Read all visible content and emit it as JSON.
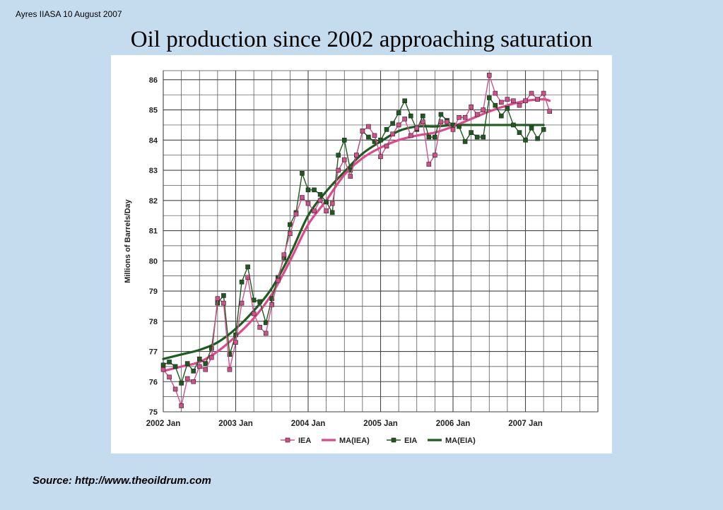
{
  "header_note": "Ayres IIASA 10 August 2007",
  "slide_title": "Oil production since 2002 approaching saturation",
  "source": "Source: http://www.theoildrum.com",
  "colors": {
    "iea": "#d0508a",
    "eia": "#1d5a1d",
    "ma_iea": "#e0488a",
    "ma_eia": "#1f5c1f"
  },
  "chart_data": {
    "type": "line",
    "title": "",
    "xlabel": "",
    "ylabel": "Millions of Barrels/Day",
    "ylim": [
      75,
      86.3
    ],
    "yticks": [
      75,
      76,
      77,
      78,
      79,
      80,
      81,
      82,
      83,
      84,
      85,
      86
    ],
    "xlim": [
      "2002-01",
      "2008-01"
    ],
    "xtick_labels": [
      "2002 Jan",
      "2003 Jan",
      "2004 Jan",
      "2005 Jan",
      "2006 Jan",
      "2007 Jan"
    ],
    "grid": true,
    "legend": "bottom",
    "series": [
      {
        "name": "IEA",
        "style": "line-markers",
        "values": [
          [
            "2002-01",
            76.4
          ],
          [
            "2002-02",
            76.15
          ],
          [
            "2002-03",
            75.75
          ],
          [
            "2002-04",
            75.2
          ],
          [
            "2002-05",
            76.1
          ],
          [
            "2002-06",
            76.0
          ],
          [
            "2002-07",
            76.5
          ],
          [
            "2002-08",
            76.4
          ],
          [
            "2002-09",
            76.8
          ],
          [
            "2002-10",
            78.75
          ],
          [
            "2002-11",
            78.6
          ],
          [
            "2002-12",
            76.4
          ],
          [
            "2003-01",
            77.3
          ],
          [
            "2003-02",
            78.6
          ],
          [
            "2003-03",
            79.45
          ],
          [
            "2003-04",
            78.25
          ],
          [
            "2003-05",
            77.8
          ],
          [
            "2003-06",
            77.6
          ],
          [
            "2003-07",
            78.55
          ],
          [
            "2003-08",
            79.35
          ],
          [
            "2003-09",
            80.2
          ],
          [
            "2003-10",
            80.9
          ],
          [
            "2003-11",
            81.55
          ],
          [
            "2003-12",
            82.1
          ],
          [
            "2004-01",
            81.9
          ],
          [
            "2004-02",
            81.65
          ],
          [
            "2004-03",
            82.0
          ],
          [
            "2004-04",
            81.65
          ],
          [
            "2004-05",
            81.9
          ],
          [
            "2004-06",
            83.0
          ],
          [
            "2004-07",
            83.35
          ],
          [
            "2004-08",
            82.8
          ],
          [
            "2004-09",
            83.5
          ],
          [
            "2004-10",
            84.3
          ],
          [
            "2004-11",
            84.45
          ],
          [
            "2004-12",
            84.15
          ],
          [
            "2005-01",
            83.45
          ],
          [
            "2005-02",
            83.8
          ],
          [
            "2005-03",
            84.2
          ],
          [
            "2005-04",
            84.5
          ],
          [
            "2005-05",
            84.7
          ],
          [
            "2005-06",
            84.15
          ],
          [
            "2005-07",
            84.4
          ],
          [
            "2005-08",
            84.6
          ],
          [
            "2005-09",
            83.2
          ],
          [
            "2005-10",
            83.5
          ],
          [
            "2005-11",
            84.6
          ],
          [
            "2005-12",
            84.6
          ],
          [
            "2006-01",
            84.35
          ],
          [
            "2006-02",
            84.75
          ],
          [
            "2006-03",
            84.75
          ],
          [
            "2006-04",
            85.1
          ],
          [
            "2006-05",
            84.85
          ],
          [
            "2006-06",
            85.0
          ],
          [
            "2006-07",
            86.15
          ],
          [
            "2006-08",
            85.55
          ],
          [
            "2006-09",
            85.25
          ],
          [
            "2006-10",
            85.35
          ],
          [
            "2006-11",
            85.3
          ],
          [
            "2006-12",
            85.15
          ],
          [
            "2007-01",
            85.3
          ],
          [
            "2007-02",
            85.55
          ],
          [
            "2007-03",
            85.35
          ],
          [
            "2007-04",
            85.55
          ],
          [
            "2007-05",
            84.95
          ]
        ]
      },
      {
        "name": "MA(IEA)",
        "style": "thick-line",
        "values": [
          [
            "2002-01",
            76.35
          ],
          [
            "2002-04",
            76.5
          ],
          [
            "2002-07",
            76.65
          ],
          [
            "2002-10",
            77.0
          ],
          [
            "2003-01",
            77.5
          ],
          [
            "2003-04",
            78.1
          ],
          [
            "2003-07",
            78.9
          ],
          [
            "2003-10",
            80.0
          ],
          [
            "2004-01",
            81.2
          ],
          [
            "2004-04",
            82.0
          ],
          [
            "2004-07",
            82.85
          ],
          [
            "2004-10",
            83.4
          ],
          [
            "2005-01",
            83.75
          ],
          [
            "2005-04",
            84.0
          ],
          [
            "2005-07",
            84.15
          ],
          [
            "2005-10",
            84.25
          ],
          [
            "2006-01",
            84.45
          ],
          [
            "2006-04",
            84.7
          ],
          [
            "2006-07",
            84.95
          ],
          [
            "2006-10",
            85.15
          ],
          [
            "2007-01",
            85.3
          ],
          [
            "2007-04",
            85.35
          ],
          [
            "2007-05",
            85.3
          ]
        ]
      },
      {
        "name": "EIA",
        "style": "line-markers",
        "values": [
          [
            "2002-01",
            76.55
          ],
          [
            "2002-02",
            76.65
          ],
          [
            "2002-03",
            76.5
          ],
          [
            "2002-04",
            75.95
          ],
          [
            "2002-05",
            76.6
          ],
          [
            "2002-06",
            76.35
          ],
          [
            "2002-07",
            76.75
          ],
          [
            "2002-08",
            76.6
          ],
          [
            "2002-09",
            77.1
          ],
          [
            "2002-10",
            78.6
          ],
          [
            "2002-11",
            78.85
          ],
          [
            "2002-12",
            76.9
          ],
          [
            "2003-01",
            77.55
          ],
          [
            "2003-02",
            79.3
          ],
          [
            "2003-03",
            79.8
          ],
          [
            "2003-04",
            78.7
          ],
          [
            "2003-05",
            78.65
          ],
          [
            "2003-06",
            77.95
          ],
          [
            "2003-07",
            78.75
          ],
          [
            "2003-08",
            79.45
          ],
          [
            "2003-09",
            80.1
          ],
          [
            "2003-10",
            81.2
          ],
          [
            "2003-11",
            81.6
          ],
          [
            "2003-12",
            82.9
          ],
          [
            "2004-01",
            82.35
          ],
          [
            "2004-02",
            82.35
          ],
          [
            "2004-03",
            82.2
          ],
          [
            "2004-04",
            81.95
          ],
          [
            "2004-05",
            81.6
          ],
          [
            "2004-06",
            83.5
          ],
          [
            "2004-07",
            84.0
          ],
          [
            "2004-08",
            83.0
          ],
          [
            "2004-09",
            83.5
          ],
          [
            "2004-10",
            84.3
          ],
          [
            "2004-11",
            84.1
          ],
          [
            "2004-12",
            83.95
          ],
          [
            "2005-01",
            84.0
          ],
          [
            "2005-02",
            84.35
          ],
          [
            "2005-03",
            84.55
          ],
          [
            "2005-04",
            84.9
          ],
          [
            "2005-05",
            85.3
          ],
          [
            "2005-06",
            84.8
          ],
          [
            "2005-07",
            84.35
          ],
          [
            "2005-08",
            84.8
          ],
          [
            "2005-09",
            84.1
          ],
          [
            "2005-10",
            84.1
          ],
          [
            "2005-11",
            84.85
          ],
          [
            "2005-12",
            84.65
          ],
          [
            "2006-01",
            84.5
          ],
          [
            "2006-02",
            84.45
          ],
          [
            "2006-03",
            83.95
          ],
          [
            "2006-04",
            84.25
          ],
          [
            "2006-05",
            84.1
          ],
          [
            "2006-06",
            84.1
          ],
          [
            "2006-07",
            85.4
          ],
          [
            "2006-08",
            85.15
          ],
          [
            "2006-09",
            84.8
          ],
          [
            "2006-10",
            85.05
          ],
          [
            "2006-11",
            84.5
          ],
          [
            "2006-12",
            84.25
          ],
          [
            "2007-01",
            84.0
          ],
          [
            "2007-02",
            84.4
          ],
          [
            "2007-03",
            84.05
          ],
          [
            "2007-04",
            84.35
          ]
        ]
      },
      {
        "name": "MA(EIA)",
        "style": "thick-line",
        "values": [
          [
            "2002-01",
            76.75
          ],
          [
            "2002-04",
            76.9
          ],
          [
            "2002-07",
            77.05
          ],
          [
            "2002-10",
            77.3
          ],
          [
            "2003-01",
            77.75
          ],
          [
            "2003-04",
            78.35
          ],
          [
            "2003-07",
            79.1
          ],
          [
            "2003-10",
            80.2
          ],
          [
            "2004-01",
            81.5
          ],
          [
            "2004-04",
            82.3
          ],
          [
            "2004-07",
            82.95
          ],
          [
            "2004-10",
            83.55
          ],
          [
            "2005-01",
            83.95
          ],
          [
            "2005-04",
            84.3
          ],
          [
            "2005-07",
            84.45
          ],
          [
            "2005-10",
            84.45
          ],
          [
            "2006-01",
            84.5
          ],
          [
            "2006-04",
            84.5
          ],
          [
            "2006-07",
            84.5
          ],
          [
            "2006-10",
            84.5
          ],
          [
            "2007-01",
            84.5
          ],
          [
            "2007-04",
            84.5
          ]
        ]
      }
    ]
  }
}
